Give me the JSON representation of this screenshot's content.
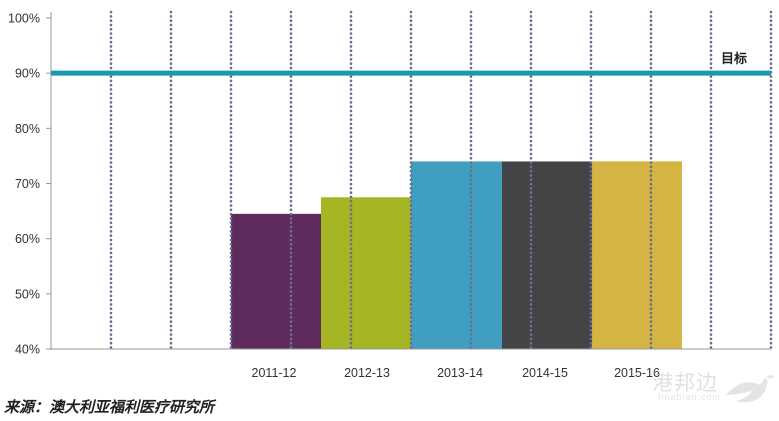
{
  "chart_data": {
    "type": "bar",
    "title": "",
    "xlabel": "",
    "ylabel": "",
    "categories": [
      "2011-12",
      "2012-13",
      "2013-14",
      "2014-15",
      "2015-16"
    ],
    "values": [
      64.5,
      67.5,
      74,
      74,
      74
    ],
    "bar_colors": [
      "#5f2b5c",
      "#a5b524",
      "#409ec0",
      "#444446",
      "#d4b443"
    ],
    "ylim": [
      40,
      100
    ],
    "yticks": [
      40,
      50,
      60,
      70,
      80,
      90,
      100
    ],
    "ytick_labels": [
      "40%",
      "50%",
      "60%",
      "70%",
      "80%",
      "90%",
      "100%"
    ],
    "target": {
      "value": 90,
      "label": "目标",
      "color": "#1a98ac"
    },
    "grid": "vertical dotted lines",
    "gridline_color": "#6a6f8c",
    "axis_color": "#999999"
  },
  "source_note": "来源：澳大利亚福利医疗研究所",
  "watermark": {
    "text": "港邦边",
    "subtext": "finabian.com"
  }
}
